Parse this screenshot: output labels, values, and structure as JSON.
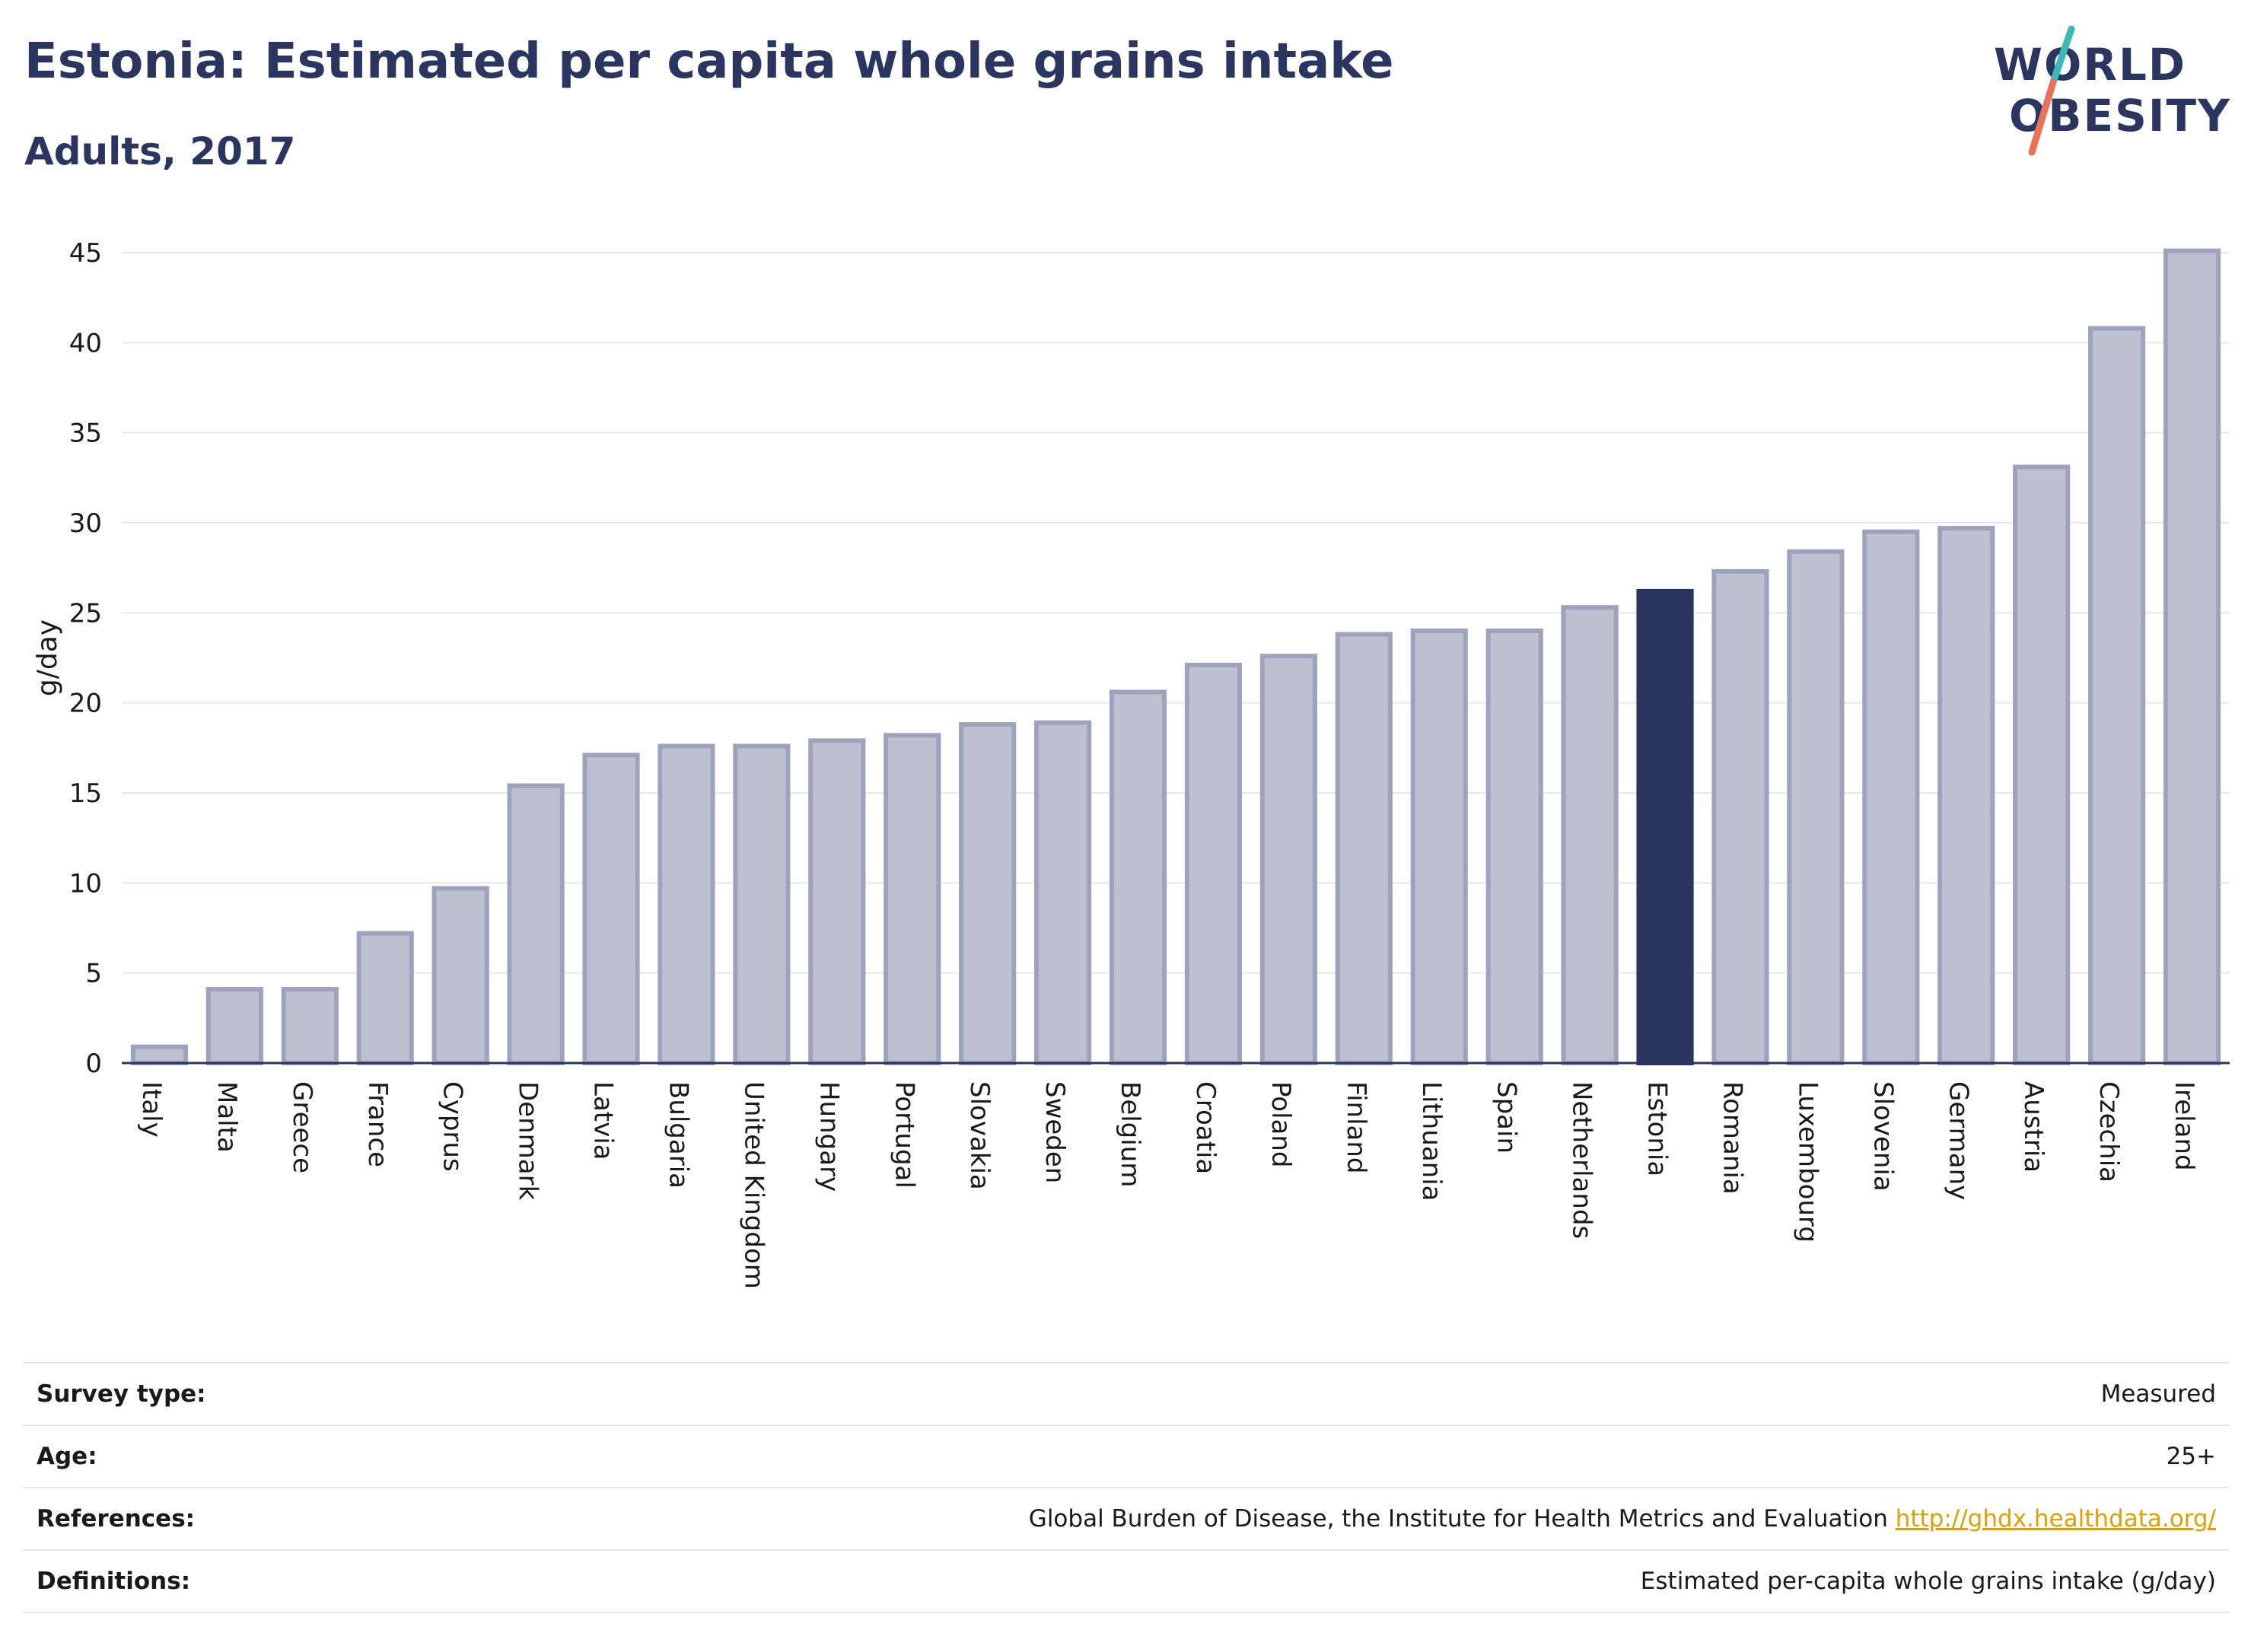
{
  "header": {
    "title": "Estonia: Estimated per capita whole grains intake",
    "subtitle": "Adults, 2017",
    "logo_text_line1": "WORLD",
    "logo_text_line2": "OBESITY"
  },
  "colors": {
    "highlight_bar": "#2a3560",
    "other_bar_fill": "#bdc1cf",
    "other_bar_border": "#9ea3bd",
    "title_color": "#2a3560",
    "logo_slash_top": "#3bb8b8",
    "logo_slash_bottom": "#e8735a",
    "link_color": "#e0a000"
  },
  "chart_data": {
    "type": "bar",
    "title": "Estonia: Estimated per capita whole grains intake",
    "subtitle": "Adults, 2017",
    "xlabel": "",
    "ylabel": "g/day",
    "ylim": [
      0,
      45
    ],
    "yticks": [
      0,
      5,
      10,
      15,
      20,
      25,
      30,
      35,
      40,
      45
    ],
    "grid": true,
    "highlight": "Estonia",
    "categories": [
      "Italy",
      "Malta",
      "Greece",
      "France",
      "Cyprus",
      "Denmark",
      "Latvia",
      "Bulgaria",
      "United Kingdom",
      "Hungary",
      "Portugal",
      "Slovakia",
      "Sweden",
      "Belgium",
      "Croatia",
      "Poland",
      "Finland",
      "Lithuania",
      "Spain",
      "Netherlands",
      "Estonia",
      "Romania",
      "Luxembourg",
      "Slovenia",
      "Germany",
      "Austria",
      "Czechia",
      "Ireland"
    ],
    "values": [
      0.9,
      4.1,
      4.1,
      7.2,
      9.7,
      15.4,
      17.1,
      17.6,
      17.6,
      17.9,
      18.2,
      18.8,
      18.9,
      20.6,
      22.1,
      22.6,
      23.8,
      24.0,
      24.0,
      25.3,
      26.2,
      27.3,
      28.4,
      29.5,
      29.7,
      33.1,
      40.8,
      45.1
    ]
  },
  "info": {
    "rows": [
      {
        "label": "Survey type:",
        "value": "Measured",
        "link": ""
      },
      {
        "label": "Age:",
        "value": "25+",
        "link": ""
      },
      {
        "label": "References:",
        "value": "Global Burden of Disease, the Institute for Health Metrics and Evaluation",
        "link": "http://ghdx.healthdata.org/"
      },
      {
        "label": "Definitions:",
        "value": "Estimated per-capita whole grains intake (g/day)",
        "link": ""
      }
    ]
  }
}
